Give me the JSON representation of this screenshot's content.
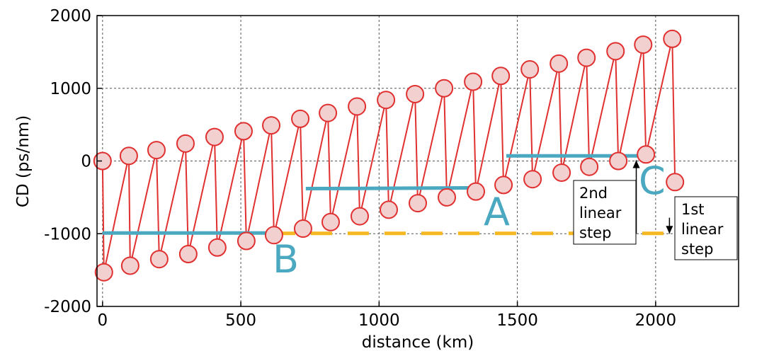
{
  "chart_data": {
    "type": "line",
    "title": "",
    "xlabel": "distance (km)",
    "ylabel": "CD (ps/nm)",
    "xlim": [
      -20,
      2300
    ],
    "ylim": [
      -2000,
      2000
    ],
    "xticks": [
      0,
      500,
      1000,
      1500,
      2000
    ],
    "yticks": [
      2000,
      1000,
      0,
      -1000,
      -2000
    ],
    "grid": true,
    "series": [
      {
        "style": "red-circles",
        "color": "#e03030",
        "fill": "#f2d0d0",
        "points": [
          [
            0,
            0
          ],
          [
            5,
            -1530
          ],
          [
            95,
            70
          ],
          [
            100,
            -1440
          ],
          [
            195,
            150
          ],
          [
            205,
            -1350
          ],
          [
            300,
            240
          ],
          [
            310,
            -1280
          ],
          [
            405,
            330
          ],
          [
            415,
            -1190
          ],
          [
            510,
            410
          ],
          [
            520,
            -1100
          ],
          [
            610,
            490
          ],
          [
            620,
            -1020
          ],
          [
            715,
            580
          ],
          [
            725,
            -930
          ],
          [
            815,
            660
          ],
          [
            825,
            -840
          ],
          [
            920,
            750
          ],
          [
            930,
            -760
          ],
          [
            1025,
            840
          ],
          [
            1035,
            -670
          ],
          [
            1130,
            920
          ],
          [
            1140,
            -580
          ],
          [
            1235,
            1000
          ],
          [
            1245,
            -500
          ],
          [
            1340,
            1090
          ],
          [
            1350,
            -420
          ],
          [
            1440,
            1170
          ],
          [
            1450,
            -330
          ],
          [
            1545,
            1260
          ],
          [
            1555,
            -250
          ],
          [
            1650,
            1340
          ],
          [
            1660,
            -160
          ],
          [
            1750,
            1420
          ],
          [
            1760,
            -80
          ],
          [
            1855,
            1510
          ],
          [
            1865,
            0
          ],
          [
            1955,
            1600
          ],
          [
            1965,
            90
          ],
          [
            2060,
            1680
          ],
          [
            2070,
            -290
          ]
        ]
      },
      {
        "style": "teal-segment",
        "color": "#4aa8c0",
        "segments": [
          {
            "x": [
              0,
              620
            ],
            "y": [
              -990,
              -990
            ]
          },
          {
            "x": [
              735,
              1330
            ],
            "y": [
              -380,
              -370
            ]
          },
          {
            "x": [
              1460,
              1965
            ],
            "y": [
              70,
              70
            ]
          }
        ]
      },
      {
        "style": "orange-dashed",
        "color": "#f5b820",
        "segments": [
          {
            "x": [
              620,
              2045
            ],
            "y": [
              -995,
              -995
            ]
          }
        ]
      }
    ],
    "annotations": [
      {
        "text": "A",
        "x": 1345,
        "y": -740
      },
      {
        "text": "B",
        "x": 620,
        "y": -1400
      },
      {
        "text": "C",
        "x": 1930,
        "y": -320
      }
    ],
    "notes": [
      {
        "lines": [
          "2nd",
          "linear",
          "step"
        ],
        "arrow": {
          "x": 1930,
          "y_from": -1000,
          "y_to": 10
        }
      },
      {
        "lines": [
          "1st",
          "linear",
          "step"
        ],
        "arrow": {
          "x": 2050,
          "y_from": -780,
          "y_to": -1000
        }
      }
    ]
  }
}
